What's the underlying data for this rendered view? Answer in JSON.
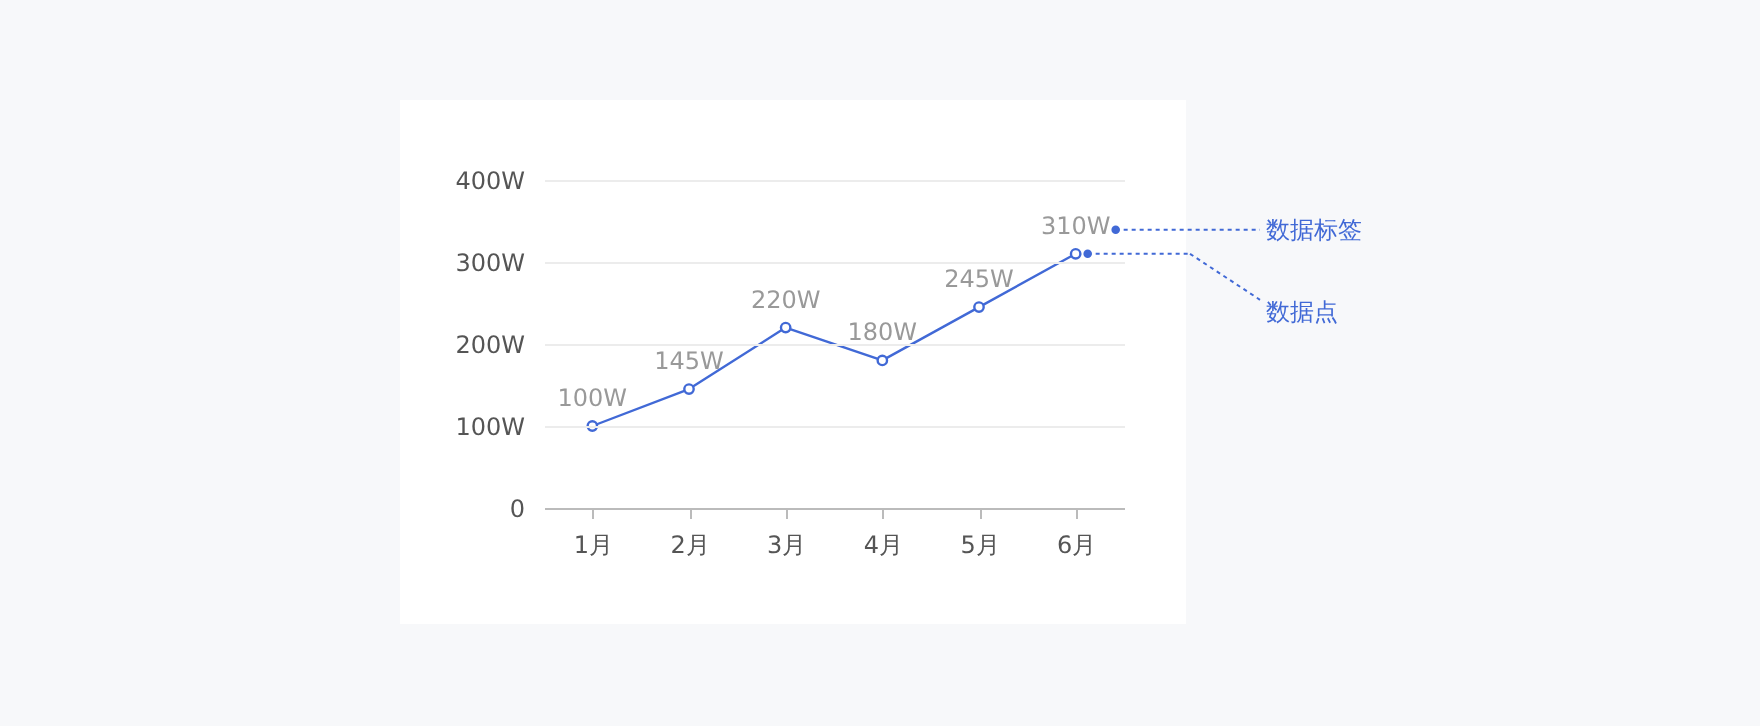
{
  "chart_data": {
    "type": "line",
    "categories": [
      "1月",
      "2月",
      "3月",
      "4月",
      "5月",
      "6月"
    ],
    "series": [
      {
        "color": "#4169d6",
        "values": [
          100,
          145,
          220,
          180,
          245,
          310
        ],
        "value_labels": [
          "100W",
          "145W",
          "220W",
          "180W",
          "245W",
          "310W"
        ]
      }
    ],
    "ylim": [
      0,
      400
    ],
    "yticks": [
      0,
      {
        "value": 100,
        "label": "100W"
      },
      {
        "value": 200,
        "label": "200W"
      },
      {
        "value": 300,
        "label": "300W"
      },
      {
        "value": 400,
        "label": "400W"
      }
    ],
    "grid": "y",
    "marker": "circle",
    "line_style": "solid",
    "annotations": [
      "数据标签",
      "数据点"
    ]
  }
}
